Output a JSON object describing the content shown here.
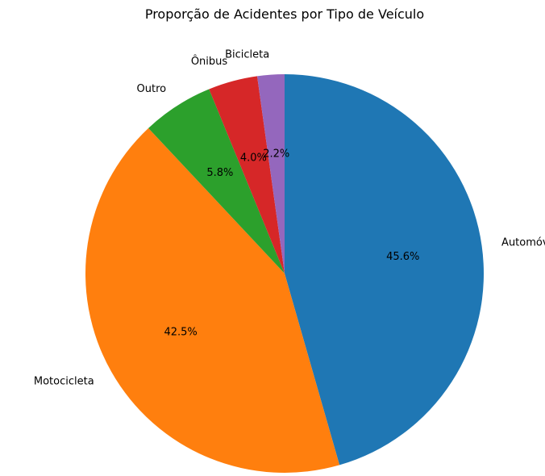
{
  "chart_data": {
    "type": "pie",
    "title": "Proporção de Acidentes por Tipo de Veículo",
    "start_angle_deg": 90,
    "direction": "clockwise",
    "slices": [
      {
        "label": "Automóvel",
        "value": 45.6,
        "pct_label": "45.6%",
        "color": "#1f77b4"
      },
      {
        "label": "Motocicleta",
        "value": 42.5,
        "pct_label": "42.5%",
        "color": "#ff7f0e"
      },
      {
        "label": "Outro",
        "value": 5.8,
        "pct_label": "5.8%",
        "color": "#2ca02c"
      },
      {
        "label": "Ônibus",
        "value": 4.0,
        "pct_label": "4.0%",
        "color": "#d62728"
      },
      {
        "label": "Bicicleta",
        "value": 2.2,
        "pct_label": "2.2%",
        "color": "#9467bd"
      }
    ]
  }
}
